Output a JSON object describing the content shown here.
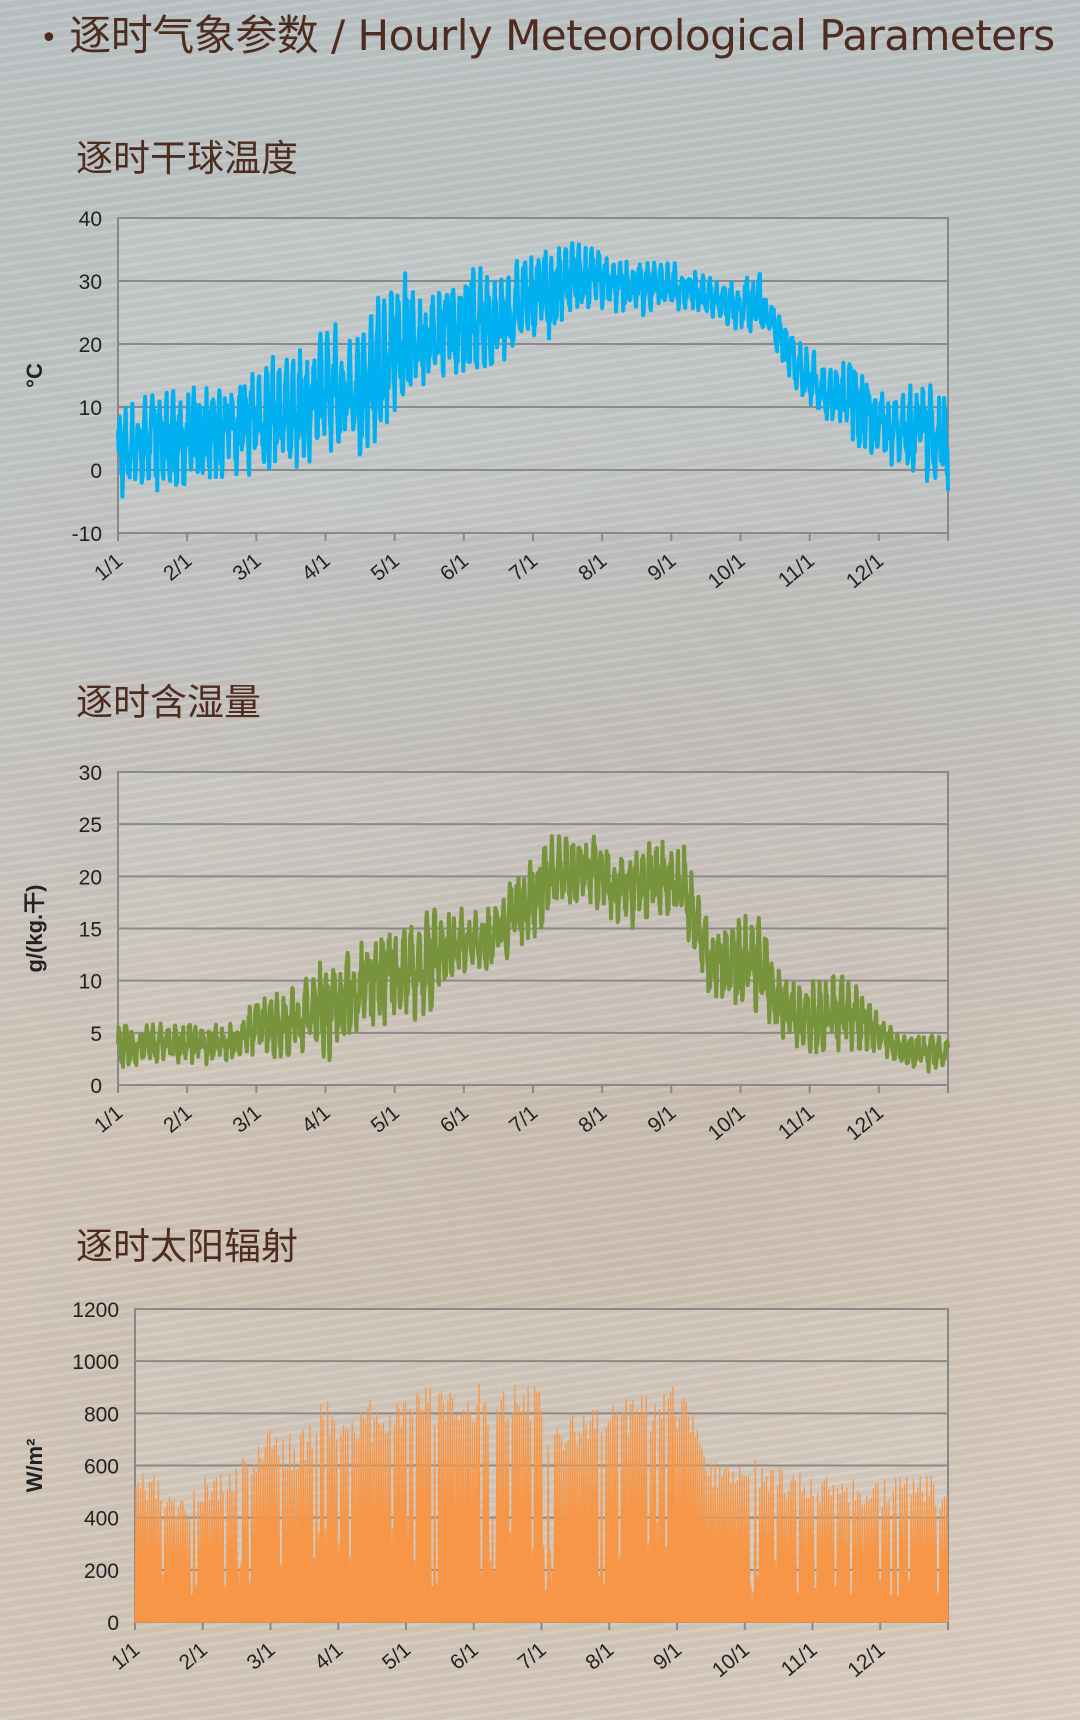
{
  "heading": {
    "bullet": "•",
    "text": "逐时气象参数 / Hourly Meteorological Parameters"
  },
  "months": [
    "1/1",
    "2/1",
    "3/1",
    "4/1",
    "5/1",
    "6/1",
    "7/1",
    "8/1",
    "9/1",
    "10/1",
    "11/1",
    "12/1"
  ],
  "chart_data": [
    {
      "type": "line",
      "title": "逐时干球温度",
      "ylabel": "°C",
      "ylim": [
        -10,
        40
      ],
      "yticks": [
        "-10",
        "0",
        "10",
        "20",
        "30",
        "40"
      ],
      "grid": true,
      "color": "#00b0f0",
      "series": [
        {
          "band_low": [
            -5,
            -3,
            -4,
            -3,
            -2,
            -1,
            -1,
            0,
            0,
            3,
            1,
            5,
            8,
            11,
            14,
            14,
            15,
            19,
            20,
            22,
            25,
            25,
            24,
            26,
            25,
            24,
            22,
            20,
            16,
            10,
            7,
            4,
            2,
            0,
            -2,
            -4
          ],
          "band_high": [
            10,
            12,
            14,
            13,
            14,
            16,
            18,
            19,
            20,
            24,
            22,
            28,
            32,
            30,
            31,
            33,
            30,
            35,
            36,
            37,
            36,
            34,
            33,
            34,
            32,
            31,
            30,
            32,
            25,
            20,
            17,
            20,
            14,
            12,
            16,
            12
          ]
        }
      ]
    },
    {
      "type": "line",
      "title": "逐时含湿量",
      "ylabel": "g/(kg.干)",
      "ylim": [
        0,
        30
      ],
      "yticks": [
        "0",
        "5",
        "10",
        "15",
        "20",
        "25",
        "30"
      ],
      "grid": true,
      "color": "#77933c",
      "series": [
        {
          "band_low": [
            1,
            2,
            2,
            2,
            2,
            2,
            3,
            2,
            3,
            2,
            4,
            5,
            6,
            6,
            9,
            10,
            11,
            13,
            15,
            17,
            17,
            15,
            15,
            16,
            14,
            8,
            7,
            6,
            4,
            3,
            3,
            3,
            3,
            2,
            1,
            1
          ],
          "band_high": [
            6,
            6,
            6,
            6,
            6,
            6,
            9,
            9,
            11,
            13,
            14,
            15,
            16,
            17,
            17,
            17,
            18,
            21,
            24,
            24,
            24,
            23,
            23,
            24,
            23,
            15,
            16,
            17,
            11,
            10,
            11,
            11,
            7,
            5,
            5,
            5
          ]
        }
      ]
    },
    {
      "type": "area",
      "title": "逐时太阳辐射",
      "ylabel": "W/m²",
      "ylim": [
        0,
        1200
      ],
      "yticks": [
        "0",
        "200",
        "400",
        "600",
        "800",
        "1000",
        "1200"
      ],
      "grid": true,
      "color": "#f79646",
      "series": [
        {
          "daily_peak": [
            560,
            600,
            520,
            480,
            560,
            590,
            620,
            700,
            760,
            720,
            760,
            880,
            860,
            840,
            870,
            900,
            930,
            920,
            880,
            900,
            920,
            940,
            950,
            950,
            780,
            800,
            820,
            850,
            870,
            880,
            900,
            930,
            880,
            660,
            620,
            600,
            640,
            600,
            580,
            560,
            570,
            560,
            550,
            550,
            560,
            560,
            560,
            520
          ]
        }
      ]
    }
  ]
}
